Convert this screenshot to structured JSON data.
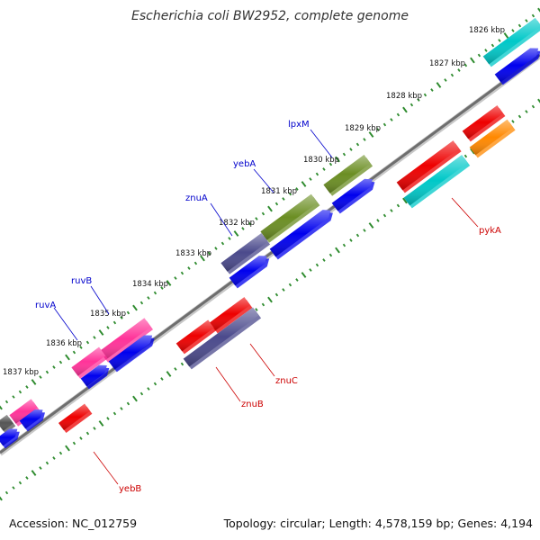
{
  "title": "Escherichia coli BW2952, complete genome",
  "accession": "Accession: NC_012759",
  "summary": "Topology: circular; Length: 4,578,159 bp; Genes: 4,194",
  "colors": {
    "backbone": "#8c8c8c",
    "tick": "#2e8b2e",
    "cds": "#0000ee",
    "upper_label": "#0000cc",
    "lower_label": "#cc0000",
    "magenta": "#ff3399",
    "olive": "#6b8e23",
    "slate": "#4b4a8c",
    "cyan": "#00c8c8",
    "red": "#ee0000",
    "orange": "#ff8800",
    "dark_gray": "#555555"
  },
  "scale_labels": [
    "1826 kbp",
    "1827 kbp",
    "1828 kbp",
    "1829 kbp",
    "1830 kbp",
    "1831 kbp",
    "1832 kbp",
    "1833 kbp",
    "1834 kbp",
    "1835 kbp",
    "1836 kbp",
    "1837 kbp"
  ],
  "upper_genes": [
    "lpxM",
    "yebA",
    "znuA",
    "ruvB",
    "ruvA"
  ],
  "lower_genes": [
    "pykA",
    "znuC",
    "znuB",
    "yebB"
  ]
}
